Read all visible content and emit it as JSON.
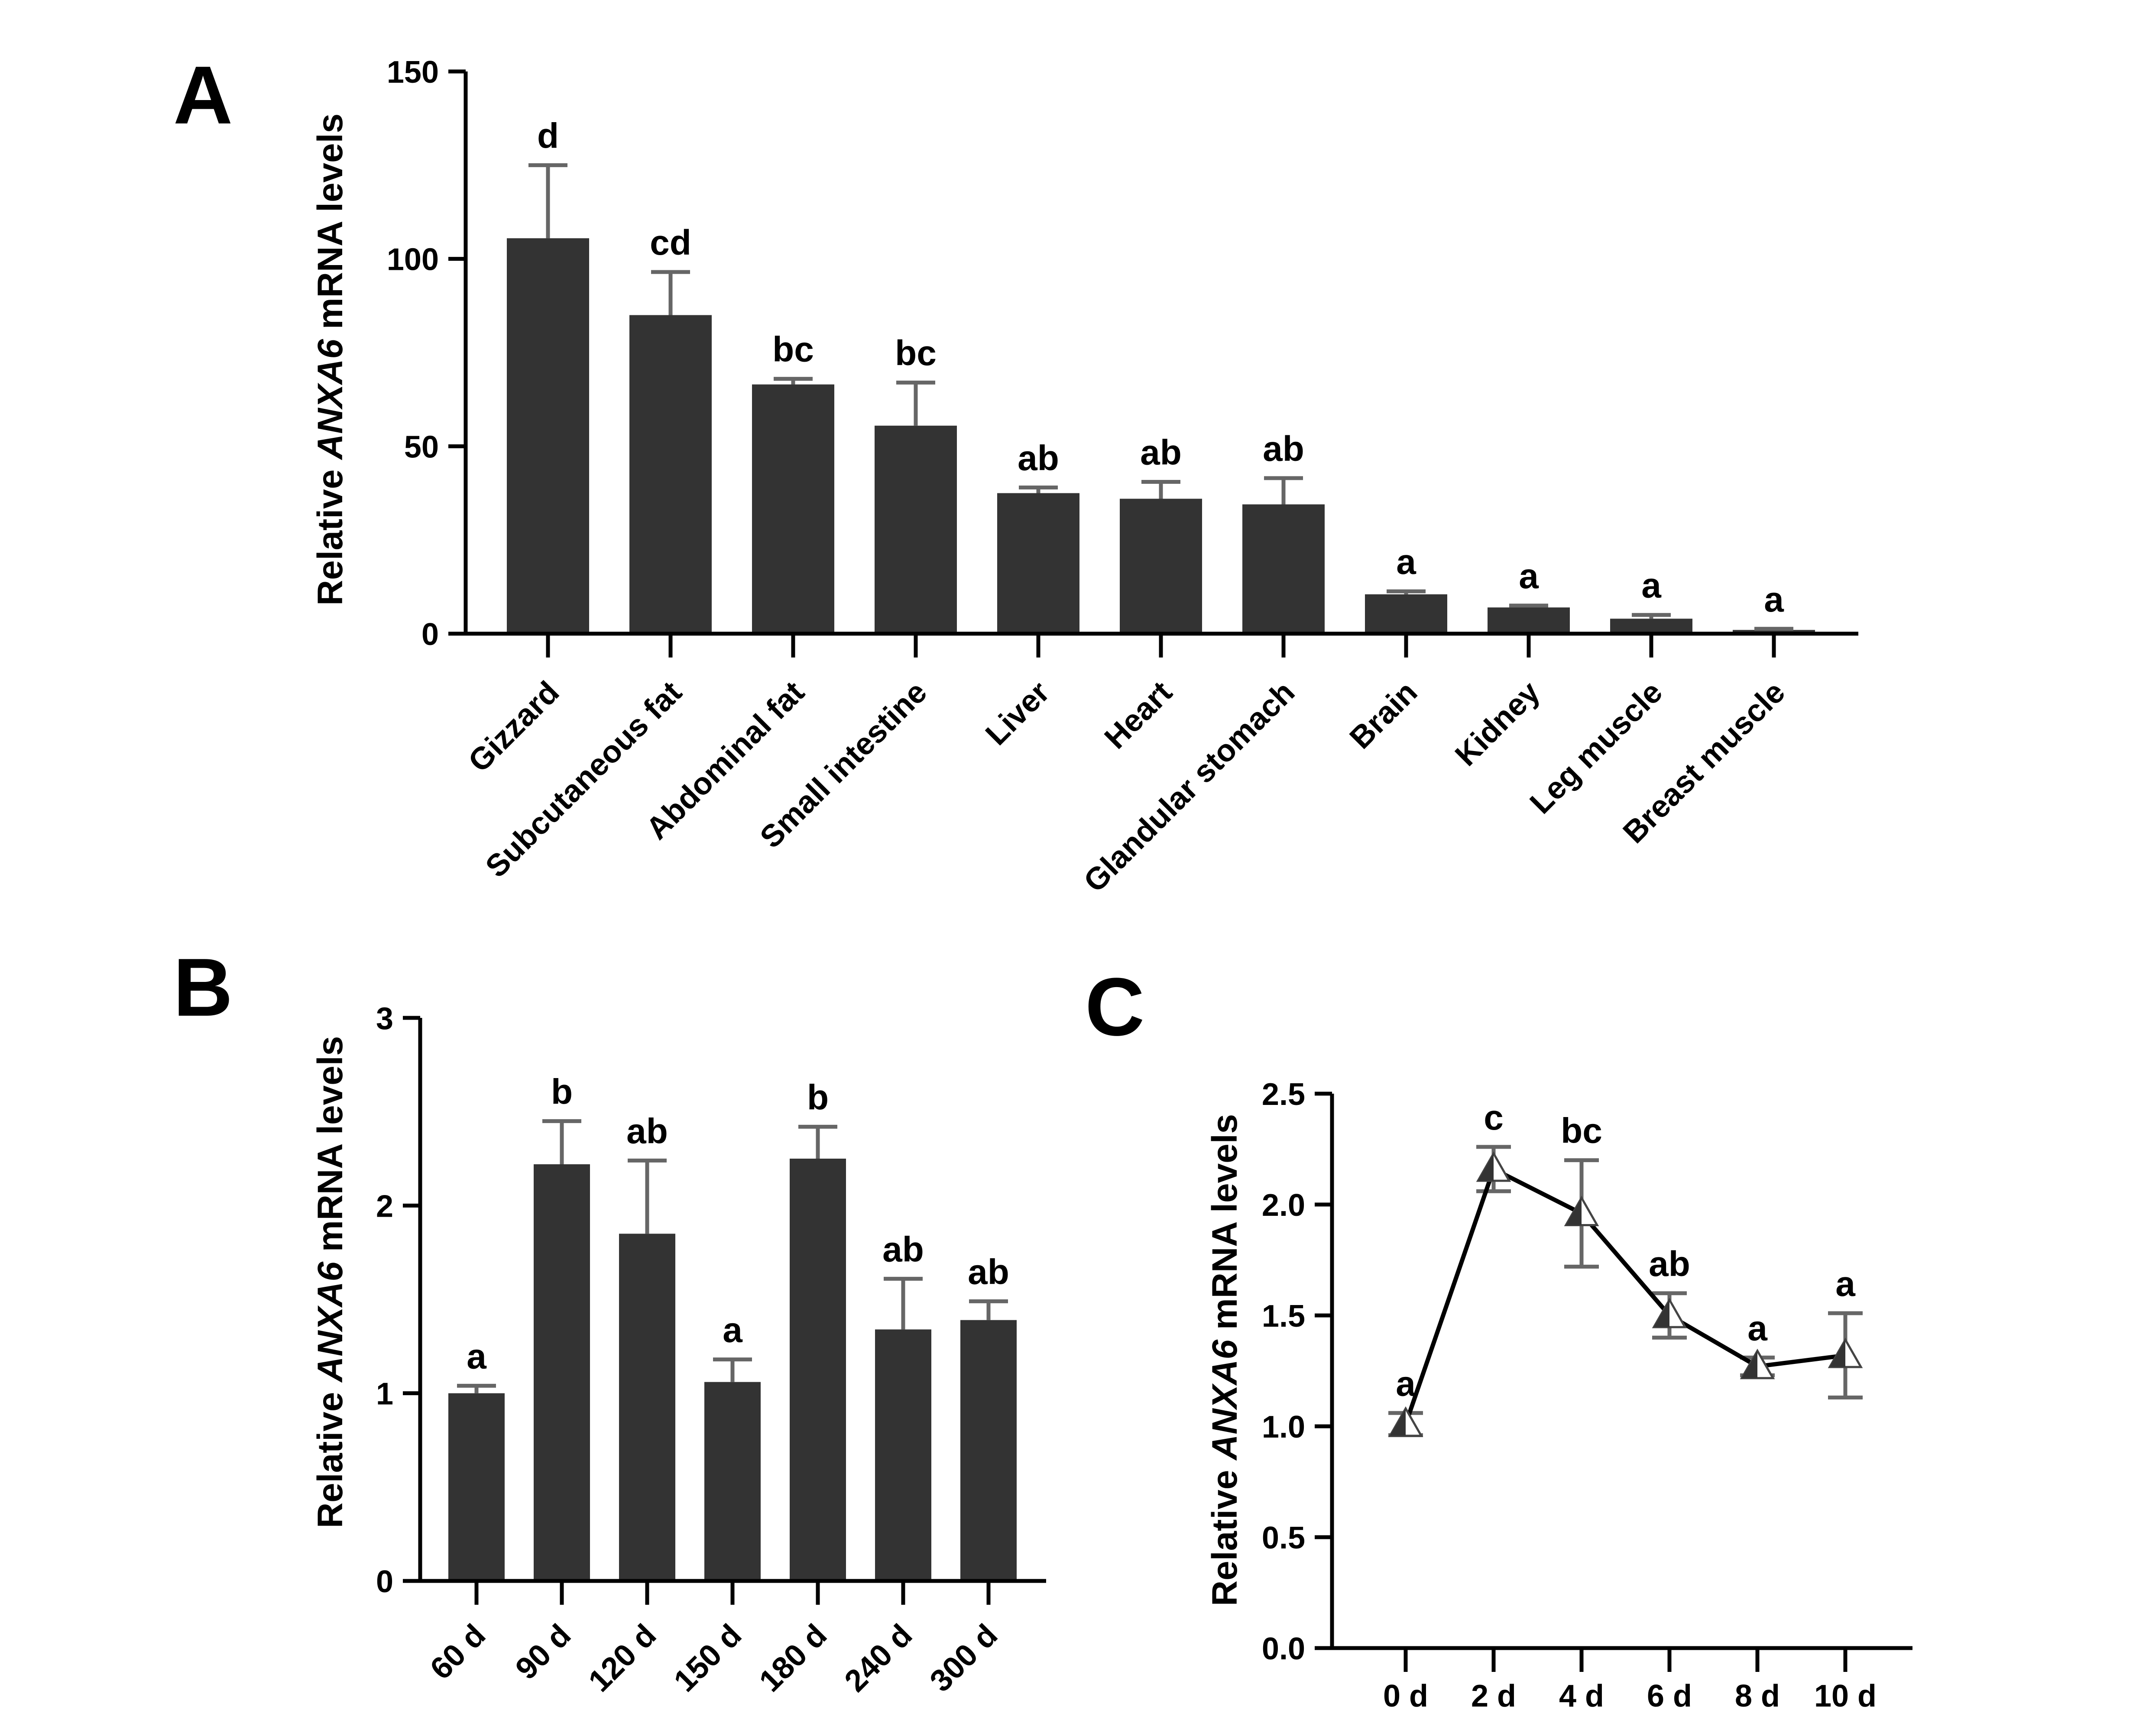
{
  "chart_data": [
    {
      "panel": "A",
      "type": "bar",
      "ylabel": [
        "Relative ",
        "ANXA6",
        " mRNA levels"
      ],
      "ylim": [
        0,
        150
      ],
      "yticks": [
        0,
        50,
        100,
        150
      ],
      "categories": [
        "Gizzard",
        "Subcutaneous fat",
        "Abdominal fat",
        "Small intestine",
        "Liver",
        "Heart",
        "Glandular stomach",
        "Brain",
        "Kidney",
        "Leg muscle",
        "Breast muscle"
      ],
      "values": [
        105.5,
        85,
        66.5,
        55.5,
        37.5,
        36,
        34.5,
        10.5,
        7,
        4,
        1
      ],
      "errors": [
        19.5,
        11.5,
        1.5,
        11.5,
        1.5,
        4.5,
        7,
        0.8,
        0.5,
        1,
        0.3
      ],
      "letters": [
        "d",
        "cd",
        "bc",
        "bc",
        "ab",
        "ab",
        "ab",
        "a",
        "a",
        "a",
        "a"
      ]
    },
    {
      "panel": "B",
      "type": "bar",
      "ylabel": [
        "Relative ",
        "ANXA6",
        " mRNA levels"
      ],
      "ylim": [
        0,
        3
      ],
      "yticks": [
        0,
        1,
        2,
        3
      ],
      "categories": [
        "60 d",
        "90 d",
        "120 d",
        "150 d",
        "180 d",
        "240 d",
        "300 d"
      ],
      "values": [
        1.0,
        2.22,
        1.85,
        1.06,
        2.25,
        1.34,
        1.39
      ],
      "errors": [
        0.04,
        0.23,
        0.39,
        0.12,
        0.17,
        0.27,
        0.1
      ],
      "letters": [
        "a",
        "b",
        "ab",
        "a",
        "b",
        "ab",
        "ab"
      ]
    },
    {
      "panel": "C",
      "type": "line",
      "ylabel": [
        "Relative ",
        "ANXA6",
        " mRNA levels"
      ],
      "ylim": [
        0,
        2.5
      ],
      "yticks": [
        "0.0",
        "0.5",
        "1.0",
        "1.5",
        "2.0",
        "2.5"
      ],
      "x": [
        "0 d",
        "2 d",
        "4 d",
        "6 d",
        "8 d",
        "10 d"
      ],
      "values": [
        1.01,
        2.16,
        1.96,
        1.5,
        1.27,
        1.32
      ],
      "errors": [
        0.05,
        0.1,
        0.24,
        0.1,
        0.04,
        0.19
      ],
      "letters": [
        "a",
        "c",
        "bc",
        "ab",
        "a",
        "a"
      ],
      "marker": "triangle"
    }
  ]
}
